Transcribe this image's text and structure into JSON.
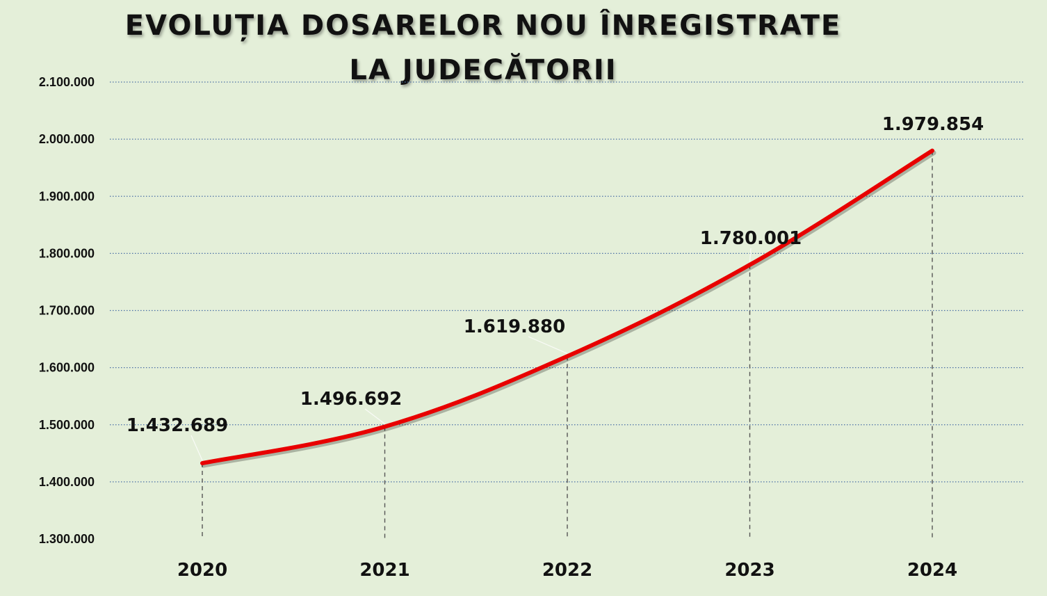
{
  "chart_data": {
    "type": "line",
    "title_lines": [
      "EVOLUȚIA DOSARELOR NOU ÎNREGISTRATE",
      "LA JUDECĂTORII"
    ],
    "xlabel": "",
    "ylabel": "",
    "categories": [
      "2020",
      "2021",
      "2022",
      "2023",
      "2024"
    ],
    "values": [
      1432689,
      1496692,
      1619880,
      1780001,
      1979854
    ],
    "data_labels": [
      "1.432.689",
      "1.496.692",
      "1.619.880",
      "1.780.001",
      "1.979.854"
    ],
    "ylim": [
      1300000,
      2100000
    ],
    "yticks": [
      1300000,
      1400000,
      1500000,
      1600000,
      1700000,
      1800000,
      1900000,
      2000000,
      2100000
    ],
    "ytick_labels": [
      "1.300.000",
      "1.400.000",
      "1.500.000",
      "1.600.000",
      "1.700.000",
      "1.800.000",
      "1.900.000",
      "2.000.000",
      "2.100.000"
    ],
    "grid": "horizontal-dotted",
    "drop_lines": true,
    "legend": "none",
    "colors": {
      "background": "#e4efd9",
      "line": "#e80000",
      "grid": "#4a6fa5",
      "drop_line": "#555555",
      "text": "#111111"
    }
  }
}
